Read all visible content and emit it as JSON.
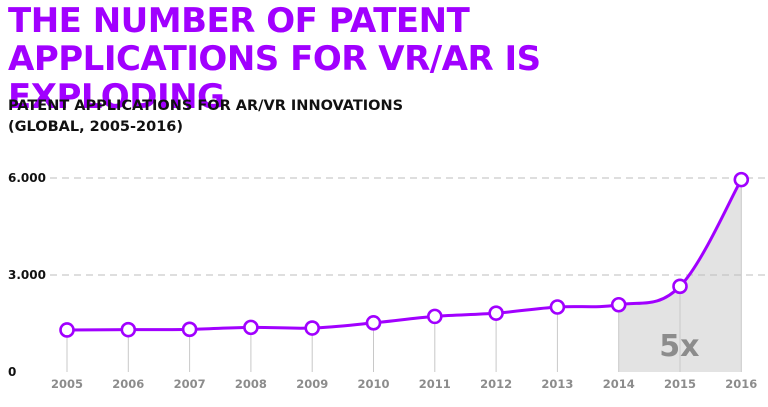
{
  "headline": {
    "line1": "THE NUMBER OF PATENT",
    "line2": "APPLICATIONS FOR VR/AR IS EXPLODING"
  },
  "colors": {
    "accent": "#a100ff",
    "shade": "#e3e3e3",
    "grid": "#bdbdbd",
    "tick_label": "#8c8c8c"
  },
  "chart_data": {
    "type": "line",
    "title": "PATENT APPLICATIONS FOR AR/VR INNOVATIONS",
    "subtitle": "(GLOBAL, 2005-2016)",
    "xlabel": "",
    "ylabel": "",
    "x": [
      "2005",
      "2006",
      "2007",
      "2008",
      "2009",
      "2010",
      "2011",
      "2012",
      "2013",
      "2014",
      "2015",
      "2016"
    ],
    "series": [
      {
        "values": [
          1300,
          1310,
          1320,
          1380,
          1360,
          1520,
          1720,
          1820,
          2010,
          2080,
          2650,
          5950
        ]
      }
    ],
    "ylim": [
      0,
      6000
    ],
    "y_ticks": [
      0,
      3000,
      6000
    ],
    "y_tick_labels": [
      "0",
      "3.000",
      "6.000"
    ],
    "grid": "dashed horizontal at 3.000 and 6.000",
    "marker": "hollow circle",
    "shaded_range": [
      "2014",
      "2016"
    ],
    "annotation": "5x",
    "legend": "none"
  }
}
